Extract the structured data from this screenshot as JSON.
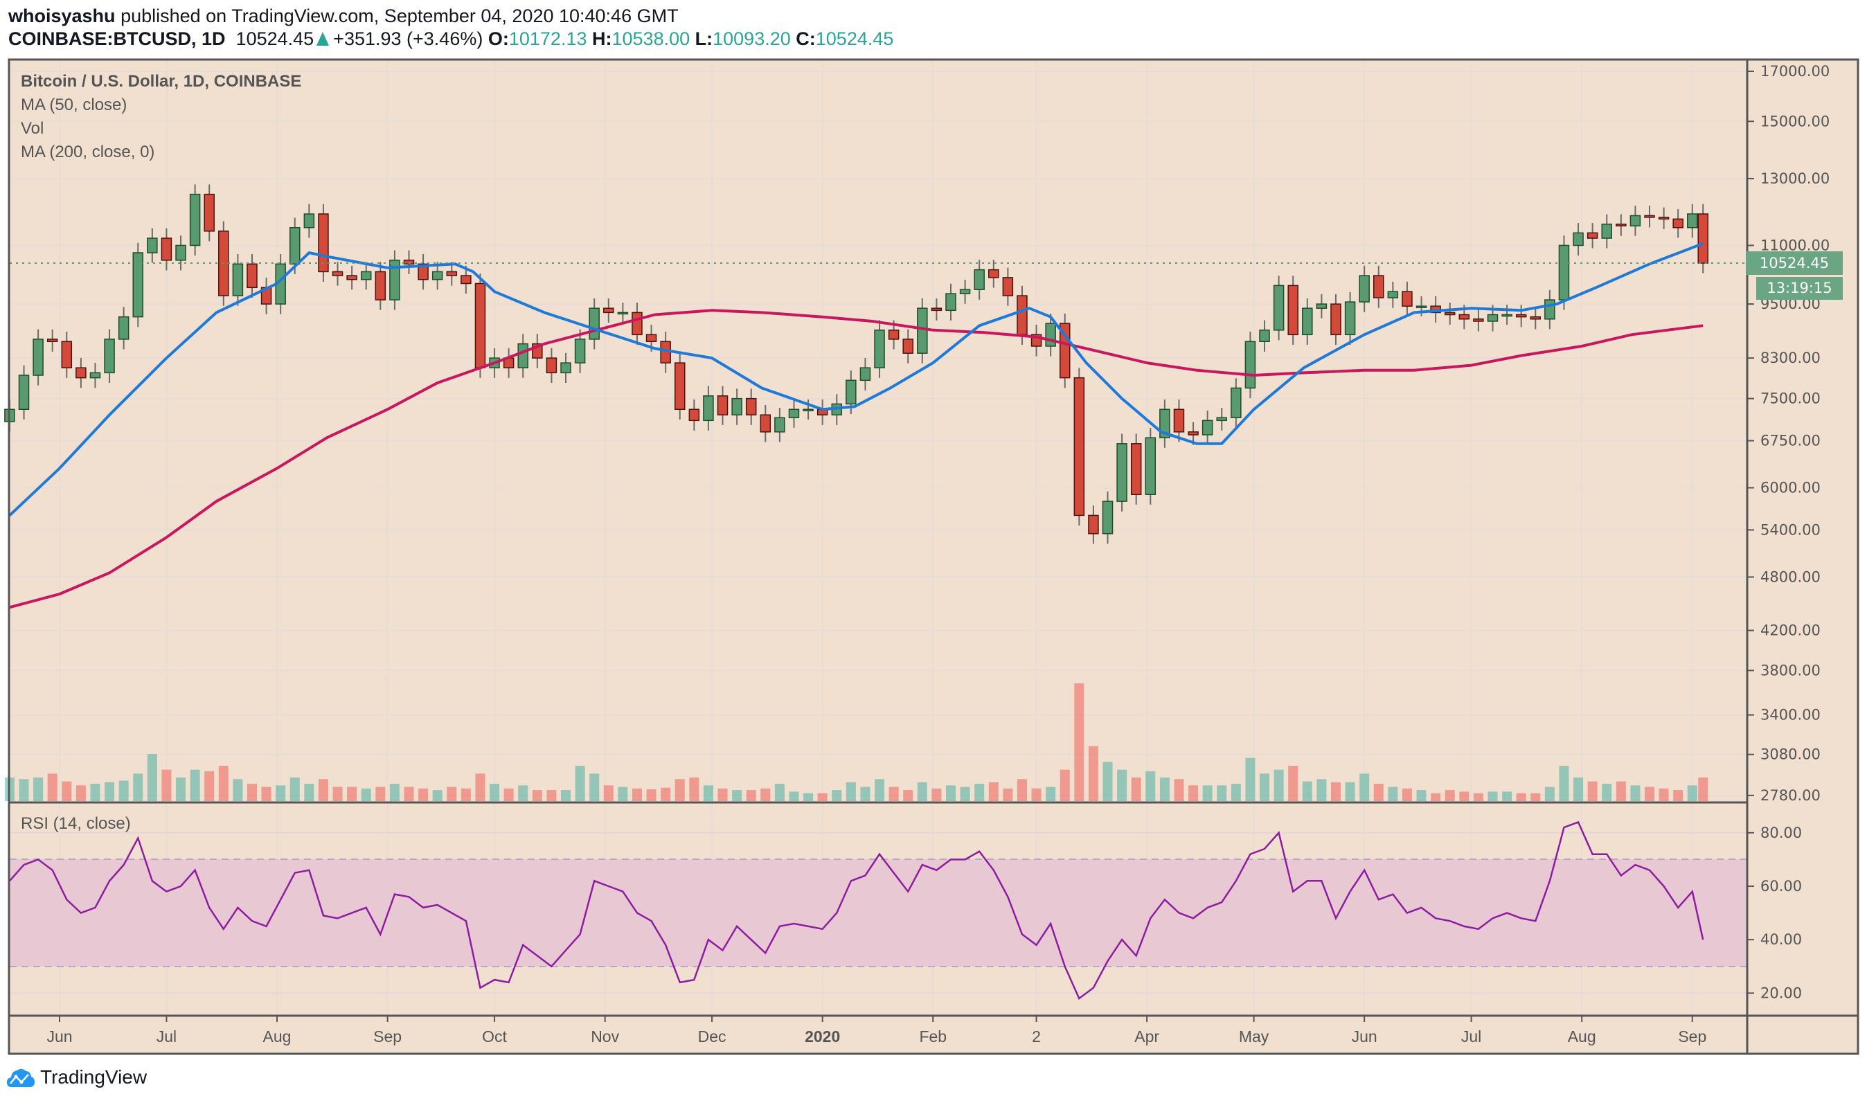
{
  "header": {
    "author": "whoisyashu",
    "published": "published on TradingView.com, September 04, 2020 10:40:46 GMT",
    "symbol": "COINBASE:BTCUSD, 1D",
    "last": "10524.45",
    "change": "+351.93 (+3.46%)",
    "o_label": "O:",
    "o": "10172.13",
    "h_label": "H:",
    "h": "10538.00",
    "l_label": "L:",
    "l": "10093.20",
    "c_label": "C:",
    "c": "10524.45"
  },
  "legend": {
    "title": "Bitcoin / U.S. Dollar, 1D, COINBASE",
    "ma50": "MA (50, close)",
    "vol": "Vol",
    "ma200": "MA (200, close, 0)",
    "rsi": "RSI (14, close)"
  },
  "price_label": "10524.45",
  "countdown": "13:19:15",
  "brand": "TradingView",
  "colors": {
    "background": "#f1dfcf",
    "up": "#5a9a70",
    "down": "#d44a3a",
    "ma50": "#1e7ad9",
    "ma200": "#c8175e",
    "rsi": "#8e1ca0",
    "rsi_band": "#e8c9d3",
    "accent": "#26a69a",
    "logo": "#2196f3"
  },
  "chart_data": [
    {
      "type": "candlestick",
      "title": "Bitcoin / U.S. Dollar, 1D, COINBASE",
      "y_scale": "log",
      "ylim": [
        2780,
        17000
      ],
      "grid": true,
      "y_ticks": [
        "17000.00",
        "15000.00",
        "13000.00",
        "11000.00",
        "9500.00",
        "8300.00",
        "7500.00",
        "6750.00",
        "6000.00",
        "5400.00",
        "4800.00",
        "4200.00",
        "3800.00",
        "3400.00",
        "3080.00",
        "2780.00"
      ],
      "x_ticks": [
        {
          "label": "Jun",
          "date": "2019-06-01"
        },
        {
          "label": "Jul",
          "date": "2019-07-01"
        },
        {
          "label": "Aug",
          "date": "2019-08-01"
        },
        {
          "label": "Sep",
          "date": "2019-09-01"
        },
        {
          "label": "Oct",
          "date": "2019-10-01"
        },
        {
          "label": "Nov",
          "date": "2019-11-01"
        },
        {
          "label": "Dec",
          "date": "2019-12-01"
        },
        {
          "label": "2020",
          "date": "2020-01-01"
        },
        {
          "label": "Feb",
          "date": "2020-02-01"
        },
        {
          "label": "2",
          "date": "2020-03-01"
        },
        {
          "label": "Apr",
          "date": "2020-04-01"
        },
        {
          "label": "May",
          "date": "2020-05-01"
        },
        {
          "label": "Jun",
          "date": "2020-06-01"
        },
        {
          "label": "Jul",
          "date": "2020-07-01"
        },
        {
          "label": "Aug",
          "date": "2020-08-01"
        },
        {
          "label": "Sep",
          "date": "2020-09-01"
        }
      ],
      "close_series": [
        [
          "2019-05-18",
          7300
        ],
        [
          "2019-05-22",
          7950
        ],
        [
          "2019-05-26",
          8700
        ],
        [
          "2019-05-30",
          8650
        ],
        [
          "2019-06-03",
          8100
        ],
        [
          "2019-06-07",
          7900
        ],
        [
          "2019-06-11",
          8000
        ],
        [
          "2019-06-15",
          8700
        ],
        [
          "2019-06-19",
          9200
        ],
        [
          "2019-06-23",
          10800
        ],
        [
          "2019-06-27",
          11200
        ],
        [
          "2019-07-01",
          10600
        ],
        [
          "2019-07-05",
          11000
        ],
        [
          "2019-07-09",
          12500
        ],
        [
          "2019-07-13",
          11400
        ],
        [
          "2019-07-17",
          9700
        ],
        [
          "2019-07-21",
          10500
        ],
        [
          "2019-07-25",
          9900
        ],
        [
          "2019-07-29",
          9500
        ],
        [
          "2019-08-02",
          10500
        ],
        [
          "2019-08-06",
          11500
        ],
        [
          "2019-08-10",
          11900
        ],
        [
          "2019-08-14",
          10300
        ],
        [
          "2019-08-18",
          10200
        ],
        [
          "2019-08-22",
          10100
        ],
        [
          "2019-08-26",
          10300
        ],
        [
          "2019-08-30",
          9600
        ],
        [
          "2019-09-03",
          10600
        ],
        [
          "2019-09-07",
          10500
        ],
        [
          "2019-09-11",
          10100
        ],
        [
          "2019-09-15",
          10300
        ],
        [
          "2019-09-19",
          10200
        ],
        [
          "2019-09-23",
          10000
        ],
        [
          "2019-09-27",
          8100
        ],
        [
          "2019-10-01",
          8300
        ],
        [
          "2019-10-05",
          8100
        ],
        [
          "2019-10-09",
          8600
        ],
        [
          "2019-10-13",
          8300
        ],
        [
          "2019-10-17",
          8000
        ],
        [
          "2019-10-21",
          8200
        ],
        [
          "2019-10-25",
          8700
        ],
        [
          "2019-10-29",
          9400
        ],
        [
          "2019-11-02",
          9300
        ],
        [
          "2019-11-06",
          9300
        ],
        [
          "2019-11-10",
          8800
        ],
        [
          "2019-11-14",
          8650
        ],
        [
          "2019-11-18",
          8200
        ],
        [
          "2019-11-22",
          7300
        ],
        [
          "2019-11-26",
          7100
        ],
        [
          "2019-11-30",
          7550
        ],
        [
          "2019-12-04",
          7200
        ],
        [
          "2019-12-08",
          7500
        ],
        [
          "2019-12-12",
          7200
        ],
        [
          "2019-12-16",
          6900
        ],
        [
          "2019-12-20",
          7150
        ],
        [
          "2019-12-24",
          7300
        ],
        [
          "2019-12-28",
          7300
        ],
        [
          "2020-01-01",
          7200
        ],
        [
          "2020-01-05",
          7400
        ],
        [
          "2020-01-09",
          7850
        ],
        [
          "2020-01-13",
          8100
        ],
        [
          "2020-01-17",
          8900
        ],
        [
          "2020-01-21",
          8700
        ],
        [
          "2020-01-25",
          8400
        ],
        [
          "2020-01-29",
          9400
        ],
        [
          "2020-02-02",
          9350
        ],
        [
          "2020-02-06",
          9750
        ],
        [
          "2020-02-10",
          9850
        ],
        [
          "2020-02-14",
          10350
        ],
        [
          "2020-02-18",
          10150
        ],
        [
          "2020-02-22",
          9700
        ],
        [
          "2020-02-26",
          8800
        ],
        [
          "2020-03-01",
          8550
        ],
        [
          "2020-03-05",
          9050
        ],
        [
          "2020-03-09",
          7900
        ],
        [
          "2020-03-13",
          5600
        ],
        [
          "2020-03-17",
          5350
        ],
        [
          "2020-03-21",
          5800
        ],
        [
          "2020-03-25",
          6700
        ],
        [
          "2020-03-29",
          5900
        ],
        [
          "2020-04-02",
          6800
        ],
        [
          "2020-04-06",
          7300
        ],
        [
          "2020-04-10",
          6900
        ],
        [
          "2020-04-14",
          6850
        ],
        [
          "2020-04-18",
          7100
        ],
        [
          "2020-04-22",
          7150
        ],
        [
          "2020-04-26",
          7700
        ],
        [
          "2020-04-30",
          8650
        ],
        [
          "2020-05-04",
          8900
        ],
        [
          "2020-05-08",
          9950
        ],
        [
          "2020-05-12",
          8800
        ],
        [
          "2020-05-16",
          9400
        ],
        [
          "2020-05-20",
          9500
        ],
        [
          "2020-05-24",
          8800
        ],
        [
          "2020-05-28",
          9550
        ],
        [
          "2020-06-01",
          10200
        ],
        [
          "2020-06-05",
          9650
        ],
        [
          "2020-06-09",
          9800
        ],
        [
          "2020-06-13",
          9450
        ],
        [
          "2020-06-17",
          9450
        ],
        [
          "2020-06-21",
          9300
        ],
        [
          "2020-06-25",
          9250
        ],
        [
          "2020-06-29",
          9150
        ],
        [
          "2020-07-03",
          9100
        ],
        [
          "2020-07-07",
          9250
        ],
        [
          "2020-07-11",
          9250
        ],
        [
          "2020-07-15",
          9200
        ],
        [
          "2020-07-19",
          9150
        ],
        [
          "2020-07-23",
          9600
        ],
        [
          "2020-07-27",
          11000
        ],
        [
          "2020-07-31",
          11350
        ],
        [
          "2020-08-04",
          11200
        ],
        [
          "2020-08-08",
          11600
        ],
        [
          "2020-08-12",
          11550
        ],
        [
          "2020-08-16",
          11850
        ],
        [
          "2020-08-20",
          11800
        ],
        [
          "2020-08-24",
          11750
        ],
        [
          "2020-08-28",
          11500
        ],
        [
          "2020-09-01",
          11900
        ],
        [
          "2020-09-04",
          10524.45
        ]
      ],
      "volume": [
        30,
        28,
        30,
        35,
        25,
        20,
        22,
        24,
        26,
        35,
        60,
        40,
        30,
        40,
        38,
        45,
        28,
        22,
        18,
        20,
        30,
        22,
        28,
        18,
        18,
        16,
        18,
        22,
        18,
        16,
        14,
        18,
        16,
        35,
        22,
        16,
        20,
        14,
        14,
        14,
        45,
        35,
        20,
        18,
        16,
        15,
        17,
        28,
        30,
        20,
        16,
        14,
        14,
        16,
        22,
        12,
        10,
        10,
        14,
        24,
        18,
        28,
        18,
        14,
        24,
        16,
        20,
        18,
        22,
        24,
        16,
        28,
        16,
        18,
        40,
        150,
        70,
        50,
        40,
        30,
        38,
        30,
        28,
        20,
        20,
        20,
        22,
        55,
        35,
        40,
        45,
        25,
        28,
        24,
        24,
        35,
        22,
        18,
        16,
        14,
        10,
        14,
        12,
        10,
        12,
        12,
        10,
        10,
        18,
        45,
        30,
        25,
        22,
        25,
        20,
        18,
        16,
        14,
        20,
        30
      ],
      "series": [
        {
          "name": "MA (50, close)",
          "values": [
            [
              "2019-05-18",
              5600
            ],
            [
              "2019-06-01",
              6300
            ],
            [
              "2019-06-15",
              7200
            ],
            [
              "2019-07-01",
              8300
            ],
            [
              "2019-07-15",
              9300
            ],
            [
              "2019-08-01",
              10000
            ],
            [
              "2019-08-10",
              10800
            ],
            [
              "2019-08-15",
              10700
            ],
            [
              "2019-09-01",
              10400
            ],
            [
              "2019-09-20",
              10500
            ],
            [
              "2019-09-25",
              10300
            ],
            [
              "2019-10-01",
              9800
            ],
            [
              "2019-10-15",
              9300
            ],
            [
              "2019-11-01",
              8850
            ],
            [
              "2019-11-15",
              8500
            ],
            [
              "2019-12-01",
              8300
            ],
            [
              "2019-12-15",
              7700
            ],
            [
              "2020-01-01",
              7300
            ],
            [
              "2020-01-10",
              7350
            ],
            [
              "2020-01-20",
              7700
            ],
            [
              "2020-02-01",
              8200
            ],
            [
              "2020-02-14",
              9000
            ],
            [
              "2020-02-28",
              9400
            ],
            [
              "2020-03-05",
              9200
            ],
            [
              "2020-03-15",
              8200
            ],
            [
              "2020-03-25",
              7500
            ],
            [
              "2020-04-05",
              6900
            ],
            [
              "2020-04-15",
              6700
            ],
            [
              "2020-04-22",
              6700
            ],
            [
              "2020-05-01",
              7300
            ],
            [
              "2020-05-15",
              8100
            ],
            [
              "2020-06-01",
              8800
            ],
            [
              "2020-06-15",
              9300
            ],
            [
              "2020-07-01",
              9400
            ],
            [
              "2020-07-15",
              9350
            ],
            [
              "2020-07-25",
              9500
            ],
            [
              "2020-08-05",
              9900
            ],
            [
              "2020-08-20",
              10500
            ],
            [
              "2020-09-04",
              11050
            ]
          ]
        },
        {
          "name": "MA (200, close, 0)",
          "values": [
            [
              "2019-05-18",
              4450
            ],
            [
              "2019-06-01",
              4600
            ],
            [
              "2019-06-15",
              4850
            ],
            [
              "2019-07-01",
              5300
            ],
            [
              "2019-07-15",
              5800
            ],
            [
              "2019-08-01",
              6300
            ],
            [
              "2019-08-15",
              6800
            ],
            [
              "2019-09-01",
              7300
            ],
            [
              "2019-09-15",
              7800
            ],
            [
              "2019-10-01",
              8200
            ],
            [
              "2019-10-15",
              8600
            ],
            [
              "2019-11-01",
              8950
            ],
            [
              "2019-11-15",
              9250
            ],
            [
              "2019-12-01",
              9350
            ],
            [
              "2019-12-15",
              9300
            ],
            [
              "2020-01-01",
              9200
            ],
            [
              "2020-01-15",
              9100
            ],
            [
              "2020-02-01",
              8900
            ],
            [
              "2020-02-15",
              8850
            ],
            [
              "2020-03-01",
              8750
            ],
            [
              "2020-03-15",
              8500
            ],
            [
              "2020-04-01",
              8200
            ],
            [
              "2020-04-15",
              8050
            ],
            [
              "2020-05-01",
              7950
            ],
            [
              "2020-05-15",
              8000
            ],
            [
              "2020-06-01",
              8050
            ],
            [
              "2020-06-15",
              8050
            ],
            [
              "2020-07-01",
              8150
            ],
            [
              "2020-07-15",
              8350
            ],
            [
              "2020-08-01",
              8550
            ],
            [
              "2020-08-15",
              8800
            ],
            [
              "2020-09-04",
              9000
            ]
          ]
        }
      ]
    },
    {
      "type": "line",
      "title": "RSI (14, close)",
      "ylim": [
        10,
        95
      ],
      "band": [
        30,
        70
      ],
      "y_ticks": [
        "80.00",
        "60.00",
        "40.00",
        "20.00"
      ],
      "values": [
        62,
        68,
        70,
        66,
        55,
        50,
        52,
        62,
        68,
        78,
        62,
        58,
        60,
        66,
        52,
        44,
        52,
        47,
        45,
        55,
        65,
        66,
        49,
        48,
        50,
        52,
        42,
        57,
        56,
        52,
        53,
        50,
        47,
        22,
        25,
        24,
        38,
        34,
        30,
        36,
        42,
        62,
        60,
        58,
        50,
        47,
        38,
        24,
        25,
        40,
        36,
        45,
        40,
        35,
        45,
        46,
        45,
        44,
        50,
        62,
        64,
        72,
        65,
        58,
        68,
        66,
        70,
        70,
        73,
        66,
        56,
        42,
        38,
        46,
        30,
        18,
        22,
        32,
        40,
        34,
        48,
        55,
        50,
        48,
        52,
        54,
        62,
        72,
        74,
        80,
        58,
        62,
        62,
        48,
        58,
        66,
        55,
        57,
        50,
        52,
        48,
        47,
        45,
        44,
        48,
        50,
        48,
        47,
        62,
        82,
        84,
        72,
        72,
        64,
        68,
        66,
        60,
        52,
        58,
        40
      ]
    }
  ]
}
